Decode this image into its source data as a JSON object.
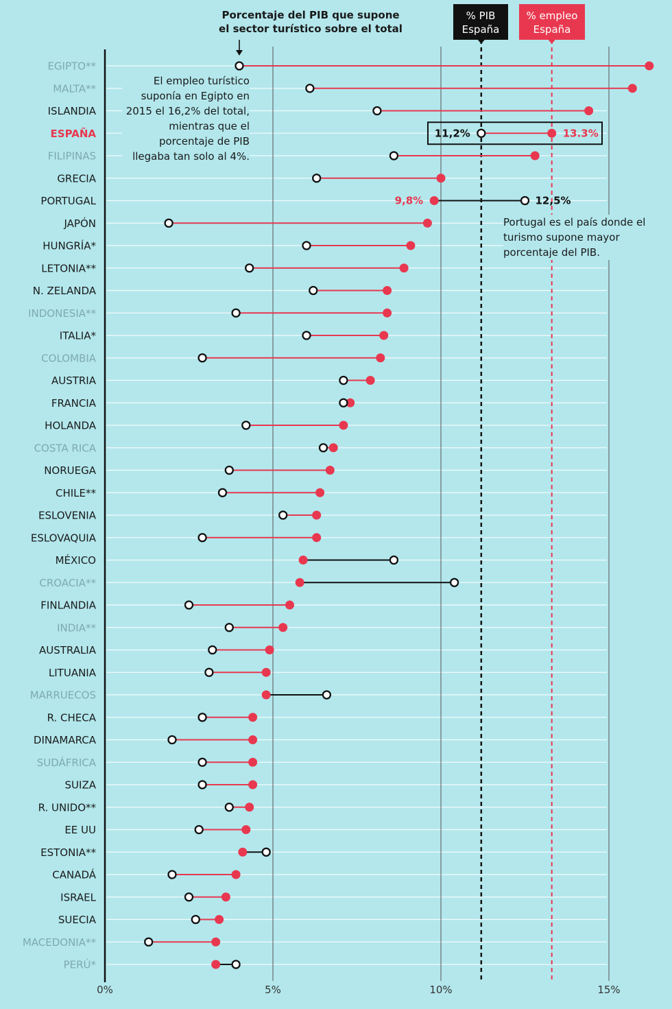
{
  "header": {
    "pib_note": "Porcentaje del PIB que supone el sector turístico sobre el total",
    "legend_pib_line1": "% PIB",
    "legend_pib_line2": "España",
    "legend_emp_line1": "% empleo",
    "legend_emp_line2": "España"
  },
  "annotations": {
    "egypt": "El empleo turístico suponía en Egipto en 2015 el 16,2% del total, mientras que el porcentaje de PIB llegaba tan solo al 4%.",
    "portugal": "Portugal es el país donde el turismo supone mayor porcentaje del PIB.",
    "spain_pib_label": "11,2%",
    "spain_emp_label": "13.3%",
    "portugal_emp_label": "9,8%",
    "portugal_pib_label": "12,5%"
  },
  "colors": {
    "background": "#b3e7ec",
    "employment": "#e8384f",
    "gdp": "#111111",
    "highlight": "#e8384f",
    "label_normal": "#1a1a1a",
    "label_muted": "#7fa9b3"
  },
  "chart_data": {
    "type": "dumbbell",
    "title": "Porcentaje del PIB que supone el sector turístico sobre el total",
    "xlabel": "",
    "ylabel": "",
    "xlim": [
      0,
      15
    ],
    "xticks": [
      0,
      5,
      10,
      15
    ],
    "xtick_labels": [
      "0%",
      "5%",
      "10%",
      "15%"
    ],
    "reference_lines": {
      "spain_pib": 11.2,
      "spain_employment": 13.3
    },
    "series": [
      {
        "name": "% PIB",
        "marker": "open-circle"
      },
      {
        "name": "% empleo",
        "marker": "filled-circle"
      }
    ],
    "countries": [
      {
        "name": "EGIPTO**",
        "pib": 4.0,
        "emp": 16.2,
        "muted": true
      },
      {
        "name": "MALTA**",
        "pib": 6.1,
        "emp": 15.7,
        "muted": true
      },
      {
        "name": "ISLANDIA",
        "pib": 8.1,
        "emp": 14.4
      },
      {
        "name": "ESPAÑA",
        "pib": 11.2,
        "emp": 13.3,
        "highlight": true
      },
      {
        "name": "FILIPINAS",
        "pib": 8.6,
        "emp": 12.8,
        "muted": true
      },
      {
        "name": "GRECIA",
        "pib": 6.3,
        "emp": 10.0
      },
      {
        "name": "PORTUGAL",
        "pib": 12.5,
        "emp": 9.8
      },
      {
        "name": "JAPÓN",
        "pib": 1.9,
        "emp": 9.6
      },
      {
        "name": "HUNGRÍA*",
        "pib": 6.0,
        "emp": 9.1
      },
      {
        "name": "LETONIA**",
        "pib": 4.3,
        "emp": 8.9
      },
      {
        "name": "N. ZELANDA",
        "pib": 6.2,
        "emp": 8.4
      },
      {
        "name": "INDONESIA**",
        "pib": 3.9,
        "emp": 8.4,
        "muted": true
      },
      {
        "name": "ITALIA*",
        "pib": 6.0,
        "emp": 8.3
      },
      {
        "name": "COLOMBIA",
        "pib": 2.9,
        "emp": 8.2,
        "muted": true
      },
      {
        "name": "AUSTRIA",
        "pib": 7.1,
        "emp": 7.9
      },
      {
        "name": "FRANCIA",
        "pib": 7.1,
        "emp": 7.3
      },
      {
        "name": "HOLANDA",
        "pib": 4.2,
        "emp": 7.1
      },
      {
        "name": "COSTA RICA",
        "pib": 6.5,
        "emp": 6.8,
        "muted": true
      },
      {
        "name": "NORUEGA",
        "pib": 3.7,
        "emp": 6.7
      },
      {
        "name": "CHILE**",
        "pib": 3.5,
        "emp": 6.4
      },
      {
        "name": "ESLOVENIA",
        "pib": 5.3,
        "emp": 6.3
      },
      {
        "name": "ESLOVAQUIA",
        "pib": 2.9,
        "emp": 6.3
      },
      {
        "name": "MÉXICO",
        "pib": 8.6,
        "emp": 5.9
      },
      {
        "name": "CROACIA**",
        "pib": 10.4,
        "emp": 5.8,
        "muted": true
      },
      {
        "name": "FINLANDIA",
        "pib": 2.5,
        "emp": 5.5
      },
      {
        "name": "INDIA**",
        "pib": 3.7,
        "emp": 5.3,
        "muted": true
      },
      {
        "name": "AUSTRALIA",
        "pib": 3.2,
        "emp": 4.9
      },
      {
        "name": "LITUANIA",
        "pib": 3.1,
        "emp": 4.8
      },
      {
        "name": "MARRUECOS",
        "pib": 6.6,
        "emp": 4.8,
        "muted": true
      },
      {
        "name": "R. CHECA",
        "pib": 2.9,
        "emp": 4.4
      },
      {
        "name": "DINAMARCA",
        "pib": 2.0,
        "emp": 4.4
      },
      {
        "name": "SUDÁFRICA",
        "pib": 2.9,
        "emp": 4.4,
        "muted": true
      },
      {
        "name": "SUIZA",
        "pib": 2.9,
        "emp": 4.4
      },
      {
        "name": "R. UNIDO**",
        "pib": 3.7,
        "emp": 4.3
      },
      {
        "name": "EE UU",
        "pib": 2.8,
        "emp": 4.2
      },
      {
        "name": "ESTONIA**",
        "pib": 4.8,
        "emp": 4.1
      },
      {
        "name": "CANADÁ",
        "pib": 2.0,
        "emp": 3.9
      },
      {
        "name": "ISRAEL",
        "pib": 2.5,
        "emp": 3.6
      },
      {
        "name": "SUECIA",
        "pib": 2.7,
        "emp": 3.4
      },
      {
        "name": "MACEDONIA**",
        "pib": 1.3,
        "emp": 3.3,
        "muted": true
      },
      {
        "name": "PERÚ*",
        "pib": 3.9,
        "emp": 3.3,
        "muted": true
      }
    ]
  }
}
